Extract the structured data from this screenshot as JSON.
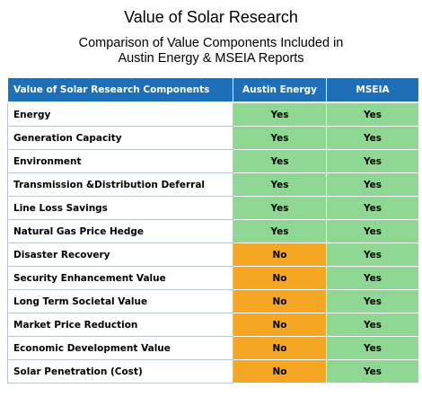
{
  "title": "Value of Solar Research",
  "subtitle_lines": [
    "Comparison of Value Components Included in",
    "Austin Energy & MSEIA Reports"
  ],
  "colors": {
    "header_bg": "#1f6fb8",
    "yes_bg": "#8fd894",
    "no_bg": "#f5a623"
  },
  "table": {
    "headers": [
      "Value of Solar Research Components",
      "Austin Energy",
      "MSEIA"
    ],
    "rows": [
      {
        "component": "Energy",
        "austin": "Yes",
        "mseia": "Yes"
      },
      {
        "component": "Generation Capacity",
        "austin": "Yes",
        "mseia": "Yes"
      },
      {
        "component": "Environment",
        "austin": "Yes",
        "mseia": "Yes"
      },
      {
        "component": "Transmission &Distribution Deferral",
        "austin": "Yes",
        "mseia": "Yes"
      },
      {
        "component": "Line Loss Savings",
        "austin": "Yes",
        "mseia": "Yes"
      },
      {
        "component": "Natural Gas Price Hedge",
        "austin": "Yes",
        "mseia": "Yes"
      },
      {
        "component": "Disaster Recovery",
        "austin": "No",
        "mseia": "Yes"
      },
      {
        "component": "Security Enhancement Value",
        "austin": "No",
        "mseia": "Yes"
      },
      {
        "component": "Long Term Societal Value",
        "austin": "No",
        "mseia": "Yes"
      },
      {
        "component": "Market Price Reduction",
        "austin": "No",
        "mseia": "Yes"
      },
      {
        "component": "Economic Development Value",
        "austin": "No",
        "mseia": "Yes"
      },
      {
        "component": "Solar Penetration (Cost)",
        "austin": "No",
        "mseia": "Yes"
      }
    ]
  }
}
